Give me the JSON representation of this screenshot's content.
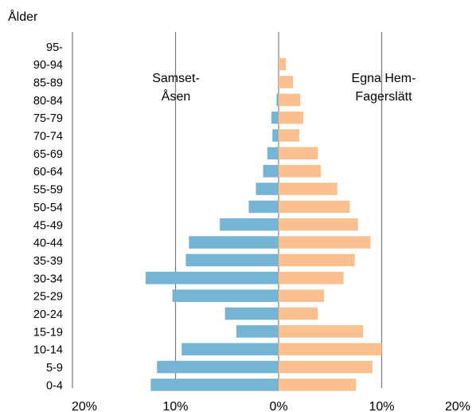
{
  "chart_data": {
    "type": "bar",
    "orientation": "horizontal",
    "subtype": "population-pyramid",
    "title": "",
    "ylabel": "Ålder",
    "xlim": [
      -20,
      20
    ],
    "x_ticks": [
      -20,
      -10,
      0,
      10,
      20
    ],
    "x_tick_labels": [
      "20%",
      "10%",
      "0%",
      "10%",
      "20%"
    ],
    "grid": true,
    "categories": [
      "0-4",
      "5-9",
      "10-14",
      "15-19",
      "20-24",
      "25-29",
      "30-34",
      "35-39",
      "40-44",
      "45-49",
      "50-54",
      "55-59",
      "60-64",
      "65-69",
      "70-74",
      "75-79",
      "80-84",
      "85-89",
      "90-94",
      "95-"
    ],
    "series": [
      {
        "name": "Samset-Åsen",
        "label_lines": [
          "Samset-",
          "Åsen"
        ],
        "side": "left",
        "color": "#74B5D5",
        "values": [
          12.4,
          11.8,
          9.4,
          4.1,
          5.2,
          10.3,
          12.9,
          9.0,
          8.7,
          5.7,
          2.9,
          2.2,
          1.5,
          1.1,
          0.6,
          0.7,
          0.2,
          0.0,
          0.0,
          0.0
        ]
      },
      {
        "name": "Egna Hem-Fagerslätt",
        "label_lines": [
          "Egna Hem-",
          "Fagerslätt"
        ],
        "side": "right",
        "color": "#FAC08F",
        "values": [
          7.5,
          9.1,
          10.0,
          8.2,
          3.8,
          4.4,
          6.3,
          7.4,
          8.9,
          7.7,
          6.9,
          5.7,
          4.1,
          3.8,
          2.0,
          2.4,
          2.1,
          1.4,
          0.7,
          0.0
        ]
      }
    ]
  }
}
